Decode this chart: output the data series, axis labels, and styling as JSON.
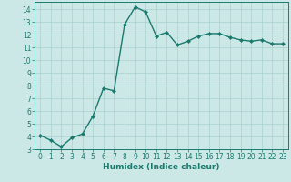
{
  "x": [
    0,
    1,
    2,
    3,
    4,
    5,
    6,
    7,
    8,
    9,
    10,
    11,
    12,
    13,
    14,
    15,
    16,
    17,
    18,
    19,
    20,
    21,
    22,
    23
  ],
  "y": [
    4.1,
    3.7,
    3.2,
    3.9,
    4.2,
    5.6,
    7.8,
    7.6,
    12.8,
    14.2,
    13.8,
    11.9,
    12.2,
    11.2,
    11.5,
    11.9,
    12.1,
    12.1,
    11.8,
    11.6,
    11.5,
    11.6,
    11.3,
    11.3
  ],
  "line_color": "#1a7a6e",
  "marker": "D",
  "marker_size": 2.0,
  "bg_color": "#cce8e6",
  "grid_color": "#a8d0ce",
  "xlabel": "Humidex (Indice chaleur)",
  "ylim_min": 3,
  "ylim_max": 14.6,
  "xlim_min": -0.5,
  "xlim_max": 23.5,
  "yticks": [
    3,
    4,
    5,
    6,
    7,
    8,
    9,
    10,
    11,
    12,
    13,
    14
  ],
  "xticks": [
    0,
    1,
    2,
    3,
    4,
    5,
    6,
    7,
    8,
    9,
    10,
    11,
    12,
    13,
    14,
    15,
    16,
    17,
    18,
    19,
    20,
    21,
    22,
    23
  ],
  "tick_fontsize": 5.5,
  "xlabel_fontsize": 6.5,
  "linewidth": 1.0
}
